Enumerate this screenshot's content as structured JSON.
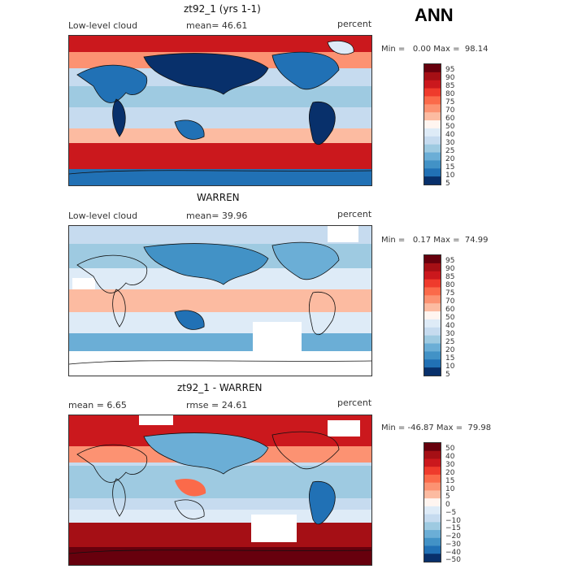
{
  "season": "ANN",
  "chart_data": [
    {
      "type": "heatmap",
      "title": "zt92_1 (yrs 1-1)",
      "variable": "Low-level cloud",
      "stat_label": "mean=  46.61",
      "mean": 46.61,
      "units": "percent",
      "min_max_label": "Min =   0.00 Max =  98.14",
      "min": 0.0,
      "max": 98.14,
      "colorbar": {
        "levels": [
          "95",
          "90",
          "85",
          "80",
          "75",
          "70",
          "60",
          "50",
          "40",
          "30",
          "25",
          "20",
          "15",
          "10",
          "5"
        ],
        "colors": [
          "#67000d",
          "#a50f15",
          "#cb181d",
          "#ef3b2c",
          "#fb6a4a",
          "#fc9272",
          "#fcbba1",
          "#fff5f0",
          "#deebf7",
          "#c6dbef",
          "#9ecae1",
          "#6baed6",
          "#4292c6",
          "#2171b5",
          "#08306b"
        ]
      }
    },
    {
      "type": "heatmap",
      "title": "WARREN",
      "variable": "Low-level cloud",
      "stat_label": "mean=  39.96",
      "mean": 39.96,
      "units": "percent",
      "min_max_label": "Min =   0.17 Max =  74.99",
      "min": 0.17,
      "max": 74.99,
      "colorbar": {
        "levels": [
          "95",
          "90",
          "85",
          "80",
          "75",
          "70",
          "60",
          "50",
          "40",
          "30",
          "25",
          "20",
          "15",
          "10",
          "5"
        ],
        "colors": [
          "#67000d",
          "#a50f15",
          "#cb181d",
          "#ef3b2c",
          "#fb6a4a",
          "#fc9272",
          "#fcbba1",
          "#fff5f0",
          "#deebf7",
          "#c6dbef",
          "#9ecae1",
          "#6baed6",
          "#4292c6",
          "#2171b5",
          "#08306b"
        ]
      }
    },
    {
      "type": "heatmap",
      "title": "zt92_1 - WARREN",
      "stat_label": "mean =   6.65",
      "mean": 6.65,
      "rmse_label": "rmse =  24.61",
      "rmse": 24.61,
      "units": "percent",
      "min_max_label": "Min = -46.87 Max =  79.98",
      "min": -46.87,
      "max": 79.98,
      "colorbar": {
        "levels": [
          "50",
          "40",
          "30",
          "20",
          "15",
          "10",
          "5",
          "0",
          "−5",
          "−10",
          "−15",
          "−20",
          "−30",
          "−40",
          "−50"
        ],
        "colors": [
          "#67000d",
          "#a50f15",
          "#cb181d",
          "#ef3b2c",
          "#fb6a4a",
          "#fc9272",
          "#fcbba1",
          "#fff5f0",
          "#deebf7",
          "#c6dbef",
          "#9ecae1",
          "#6baed6",
          "#4292c6",
          "#2171b5",
          "#08306b"
        ]
      }
    }
  ]
}
